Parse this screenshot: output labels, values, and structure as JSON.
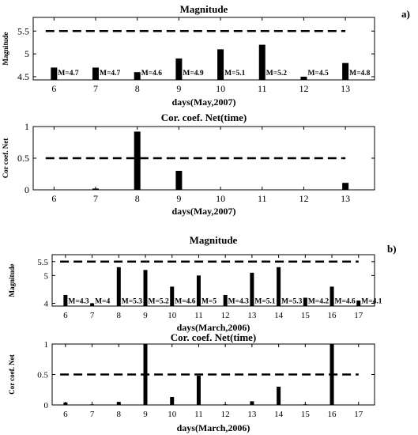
{
  "panel_labels": [
    "a)",
    "b)"
  ],
  "chart_data": [
    {
      "type": "bar",
      "title": "Magnitude",
      "ylabel": "Magnitude",
      "xlabel": "days(May,2007)",
      "x": [
        6,
        7,
        8,
        9,
        10,
        11,
        12,
        13
      ],
      "values": [
        4.7,
        4.7,
        4.6,
        4.9,
        5.1,
        5.2,
        4.5,
        4.8
      ],
      "bar_labels": [
        "M=4.7",
        "M=4.7",
        "M=4.6",
        "M=4.9",
        "M=5.1",
        "M=5.2",
        "M=4.5",
        "M=4.8"
      ],
      "threshold": 5.5,
      "threshold_x": [
        5.8,
        13.0
      ],
      "xlim": [
        5.5,
        13.7
      ],
      "ylim": [
        4.43,
        5.8
      ],
      "xticks": [
        6,
        7,
        8,
        9,
        10,
        11,
        12,
        13
      ],
      "yticks": [
        4.5,
        5,
        5.5
      ],
      "ytick_labels": [
        "4.5",
        "5",
        "5.5"
      ]
    },
    {
      "type": "bar",
      "title": "Cor. coef. Net(time)",
      "ylabel": "Cor coef. Net",
      "xlabel": "days(May,2007)",
      "x": [
        6,
        7,
        8,
        9,
        10,
        11,
        12,
        13
      ],
      "values": [
        0,
        0.02,
        0.92,
        0.3,
        0,
        0,
        0,
        0.11
      ],
      "threshold": 0.5,
      "threshold_x": [
        5.8,
        13.0
      ],
      "xlim": [
        5.5,
        13.7
      ],
      "ylim": [
        0,
        1
      ],
      "xticks": [
        6,
        7,
        8,
        9,
        10,
        11,
        12,
        13
      ],
      "yticks": [
        0,
        0.5,
        1
      ],
      "ytick_labels": [
        "0",
        "0.5",
        "1"
      ]
    },
    {
      "type": "bar",
      "title": "Magnitude",
      "ylabel": "Magnitude",
      "xlabel": "days(March,2006)",
      "x": [
        6,
        7,
        8,
        9,
        10,
        11,
        12,
        13,
        14,
        15,
        16,
        17
      ],
      "values": [
        4.3,
        4.0,
        5.3,
        5.2,
        4.6,
        5.0,
        4.3,
        5.1,
        5.3,
        4.2,
        4.6,
        4.1
      ],
      "bar_labels": [
        "M=4.3",
        "M=4",
        "M=5.3",
        "M=5.2",
        "M=4.6",
        "M=5",
        "M=4.3",
        "M=5.1",
        "M=5.3",
        "M=4.2",
        "M=4.6",
        "M=4.1"
      ],
      "threshold": 5.5,
      "threshold_x": [
        5.8,
        17.0
      ],
      "xlim": [
        5.5,
        17.6
      ],
      "ylim": [
        3.9,
        5.75
      ],
      "xticks": [
        6,
        7,
        8,
        9,
        10,
        11,
        12,
        13,
        14,
        15,
        16,
        17
      ],
      "yticks": [
        4,
        5,
        5.5
      ],
      "ytick_labels": [
        "4",
        "5",
        "5.5"
      ]
    },
    {
      "type": "bar",
      "title": "Cor. coef. Net(time)",
      "ylabel": "Cor coef. Net",
      "xlabel": "days(March,2006)",
      "x": [
        6,
        7,
        8,
        9,
        10,
        11,
        12,
        13,
        14,
        15,
        16,
        17
      ],
      "values": [
        0.04,
        0.01,
        0.05,
        1.0,
        0.13,
        0.48,
        0.01,
        0.06,
        0.3,
        0.01,
        1.0,
        0
      ],
      "threshold": 0.5,
      "threshold_x": [
        5.8,
        17.0
      ],
      "xlim": [
        5.5,
        17.6
      ],
      "ylim": [
        0,
        1
      ],
      "xticks": [
        6,
        7,
        8,
        9,
        10,
        11,
        12,
        13,
        14,
        15,
        16,
        17
      ],
      "yticks": [
        0,
        0.5,
        1
      ],
      "ytick_labels": [
        "0",
        "0.5",
        "1"
      ]
    }
  ]
}
